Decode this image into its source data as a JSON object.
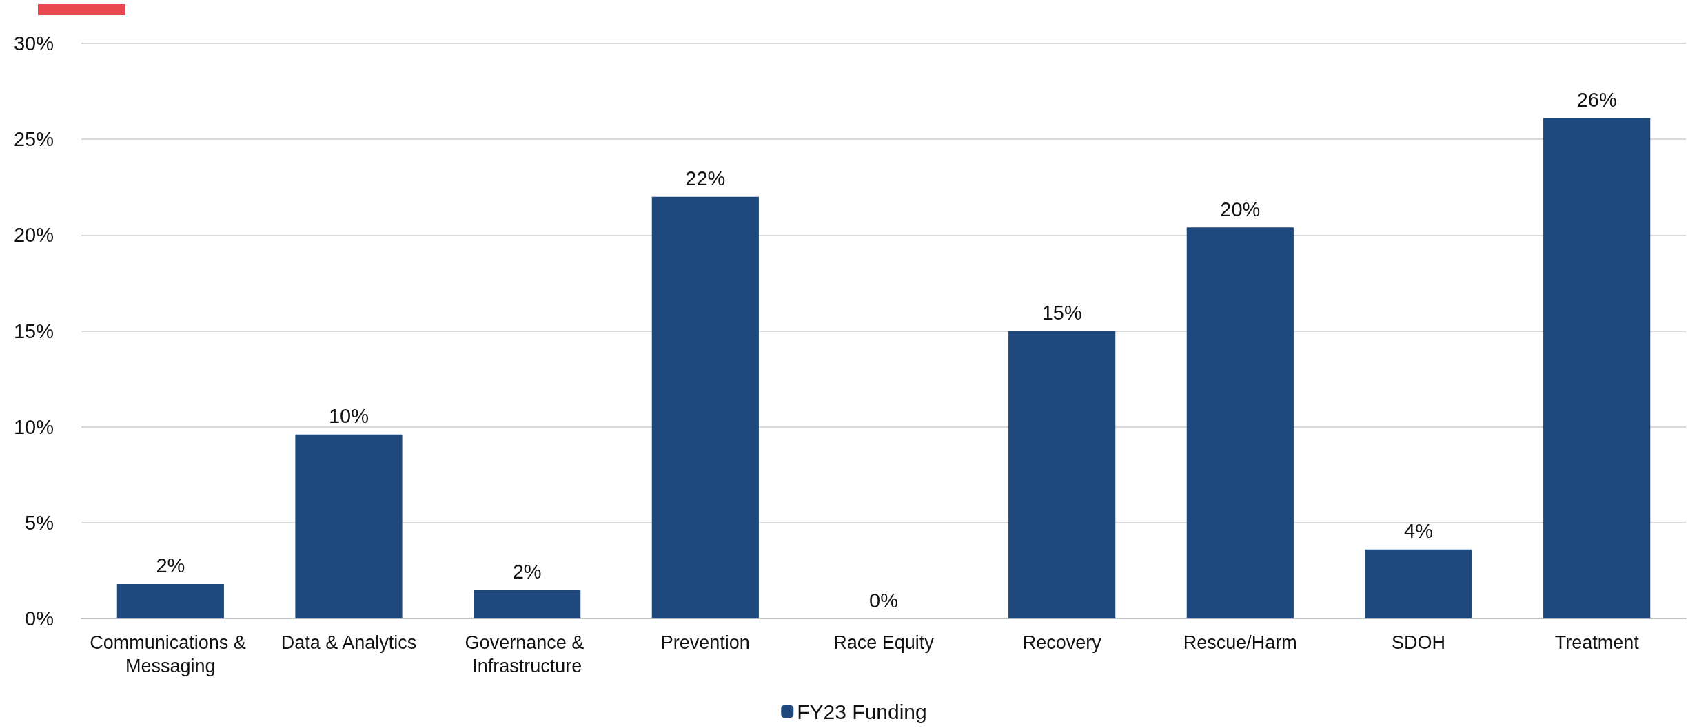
{
  "chart_data": {
    "type": "bar",
    "categories": [
      "Communications & Messaging",
      "Data & Analytics",
      "Governance & Infrastructure",
      "Prevention",
      "Race Equity",
      "Recovery",
      "Rescue/Harm",
      "SDOH",
      "Treatment"
    ],
    "series": [
      {
        "name": "FY23 Funding",
        "color": "#1f497d",
        "values": [
          1.8,
          9.6,
          1.5,
          22,
          0,
          15,
          20.4,
          3.6,
          26.1
        ],
        "value_labels": [
          "2%",
          "10%",
          "2%",
          "22%",
          "0%",
          "15%",
          "20%",
          "4%",
          "26%"
        ]
      }
    ],
    "ylim": [
      0,
      30
    ],
    "yticks": [
      {
        "value": 0,
        "label": "0%"
      },
      {
        "value": 5,
        "label": "5%"
      },
      {
        "value": 10,
        "label": "10%"
      },
      {
        "value": 15,
        "label": "15%"
      },
      {
        "value": 20,
        "label": "20%"
      },
      {
        "value": 25,
        "label": "25%"
      },
      {
        "value": 30,
        "label": "30%"
      }
    ],
    "grid": "y",
    "legend": "bottom"
  }
}
